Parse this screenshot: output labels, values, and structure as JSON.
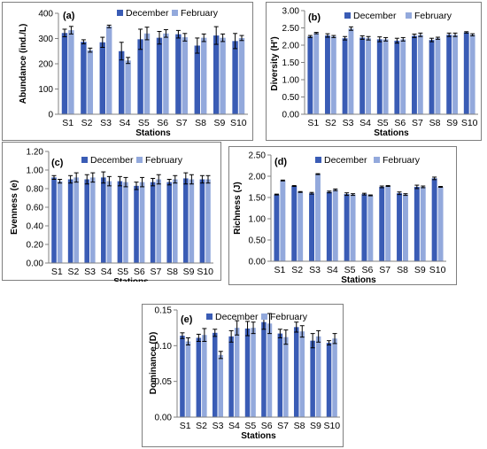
{
  "colors": {
    "december": "#3a5cb5",
    "february": "#93a9dc",
    "axis": "#808080",
    "errorbar": "#000000"
  },
  "chart_data": [
    {
      "type": "bar",
      "panel_label": "(a)",
      "ylabel": "Abundance (ind./L)",
      "xlabel": "Stations",
      "categories": [
        "S1",
        "S2",
        "S3",
        "S4",
        "S5",
        "S6",
        "S7",
        "S8",
        "S9",
        "S10"
      ],
      "ylim": [
        0,
        400
      ],
      "yticks": [
        "0",
        "100",
        "200",
        "300",
        "400"
      ],
      "ytick_values": [
        0,
        100,
        200,
        300,
        400
      ],
      "series": [
        {
          "name": "December",
          "values": [
            322,
            287,
            285,
            250,
            297,
            303,
            317,
            272,
            312,
            290
          ],
          "errors": [
            15,
            8,
            20,
            35,
            40,
            25,
            15,
            30,
            35,
            30
          ]
        },
        {
          "name": "February",
          "values": [
            333,
            254,
            348,
            213,
            320,
            320,
            305,
            303,
            303,
            302
          ],
          "errors": [
            15,
            8,
            5,
            12,
            25,
            15,
            15,
            15,
            15,
            10
          ]
        }
      ]
    },
    {
      "type": "bar",
      "panel_label": "(b)",
      "ylabel": "Diversity (H')",
      "xlabel": "Stations",
      "categories": [
        "S1",
        "S2",
        "S3",
        "S4",
        "S5",
        "S6",
        "S7",
        "S8",
        "S9",
        "S10"
      ],
      "ylim": [
        0,
        3
      ],
      "yticks": [
        "0.00",
        "0.50",
        "1.00",
        "1.50",
        "2.00",
        "2.50",
        "3.00"
      ],
      "ytick_values": [
        0,
        0.5,
        1,
        1.5,
        2,
        2.5,
        3
      ],
      "series": [
        {
          "name": "December",
          "values": [
            2.25,
            2.28,
            2.2,
            2.22,
            2.17,
            2.13,
            2.27,
            2.15,
            2.3,
            2.37
          ],
          "errors": [
            0.03,
            0.05,
            0.05,
            0.05,
            0.07,
            0.07,
            0.05,
            0.05,
            0.05,
            0.02
          ]
        },
        {
          "name": "February",
          "values": [
            2.35,
            2.25,
            2.48,
            2.2,
            2.17,
            2.17,
            2.3,
            2.2,
            2.3,
            2.3
          ],
          "errors": [
            0.02,
            0.03,
            0.05,
            0.05,
            0.05,
            0.05,
            0.05,
            0.03,
            0.05,
            0.03
          ]
        }
      ]
    },
    {
      "type": "bar",
      "panel_label": "(c)",
      "ylabel": "Evenness (e)",
      "xlabel": "Stations",
      "categories": [
        "S1",
        "S2",
        "S3",
        "S4",
        "S5",
        "S6",
        "S7",
        "S8",
        "S9",
        "S10"
      ],
      "ylim": [
        0,
        1.2
      ],
      "yticks": [
        "0.00",
        "0.20",
        "0.40",
        "0.60",
        "0.80",
        "1.00",
        "1.20"
      ],
      "ytick_values": [
        0,
        0.2,
        0.4,
        0.6,
        0.8,
        1,
        1.2
      ],
      "series": [
        {
          "name": "December",
          "values": [
            0.92,
            0.9,
            0.9,
            0.92,
            0.88,
            0.83,
            0.87,
            0.87,
            0.91,
            0.9
          ],
          "errors": [
            0.02,
            0.04,
            0.05,
            0.06,
            0.05,
            0.04,
            0.04,
            0.03,
            0.06,
            0.04
          ]
        },
        {
          "name": "February",
          "values": [
            0.88,
            0.92,
            0.92,
            0.88,
            0.87,
            0.87,
            0.9,
            0.9,
            0.9,
            0.9
          ],
          "errors": [
            0.02,
            0.05,
            0.05,
            0.05,
            0.05,
            0.05,
            0.05,
            0.04,
            0.05,
            0.04
          ]
        }
      ]
    },
    {
      "type": "bar",
      "panel_label": "(d)",
      "ylabel": "Richness (J)",
      "xlabel": "Stations",
      "categories": [
        "S1",
        "S2",
        "S3",
        "S4",
        "S5",
        "S6",
        "S7",
        "S8",
        "S9",
        "S10"
      ],
      "ylim": [
        0,
        2.5
      ],
      "yticks": [
        "0.00",
        "0.50",
        "1.00",
        "1.50",
        "2.00",
        "2.50"
      ],
      "ytick_values": [
        0,
        0.5,
        1,
        1.5,
        2,
        2.5
      ],
      "series": [
        {
          "name": "December",
          "values": [
            1.57,
            1.77,
            1.6,
            1.63,
            1.58,
            1.58,
            1.75,
            1.6,
            1.75,
            1.95
          ],
          "errors": [
            0.01,
            0.01,
            0.02,
            0.02,
            0.03,
            0.02,
            0.02,
            0.03,
            0.04,
            0.03
          ]
        },
        {
          "name": "February",
          "values": [
            1.9,
            1.63,
            2.05,
            1.68,
            1.57,
            1.55,
            1.77,
            1.57,
            1.75,
            1.75
          ],
          "errors": [
            0.01,
            0.01,
            0.01,
            0.02,
            0.02,
            0.01,
            0.01,
            0.02,
            0.02,
            0.01
          ]
        }
      ]
    },
    {
      "type": "bar",
      "panel_label": "(e)",
      "ylabel": "Dominance (D)",
      "xlabel": "Stations",
      "categories": [
        "S1",
        "S2",
        "S3",
        "S4",
        "S5",
        "S6",
        "S7",
        "S8",
        "S9",
        "S10"
      ],
      "ylim": [
        0,
        0.15
      ],
      "yticks": [
        "0.00",
        "0.05",
        "0.10",
        "0.15"
      ],
      "ytick_values": [
        0,
        0.05,
        0.1,
        0.15
      ],
      "series": [
        {
          "name": "December",
          "values": [
            0.114,
            0.111,
            0.118,
            0.113,
            0.124,
            0.133,
            0.117,
            0.126,
            0.107,
            0.104
          ],
          "errors": [
            0.004,
            0.005,
            0.005,
            0.008,
            0.01,
            0.01,
            0.006,
            0.007,
            0.01,
            0.003
          ]
        },
        {
          "name": "February",
          "values": [
            0.106,
            0.115,
            0.087,
            0.125,
            0.125,
            0.131,
            0.112,
            0.12,
            0.113,
            0.11
          ],
          "errors": [
            0.005,
            0.009,
            0.005,
            0.01,
            0.008,
            0.014,
            0.01,
            0.008,
            0.008,
            0.007
          ]
        }
      ]
    }
  ]
}
